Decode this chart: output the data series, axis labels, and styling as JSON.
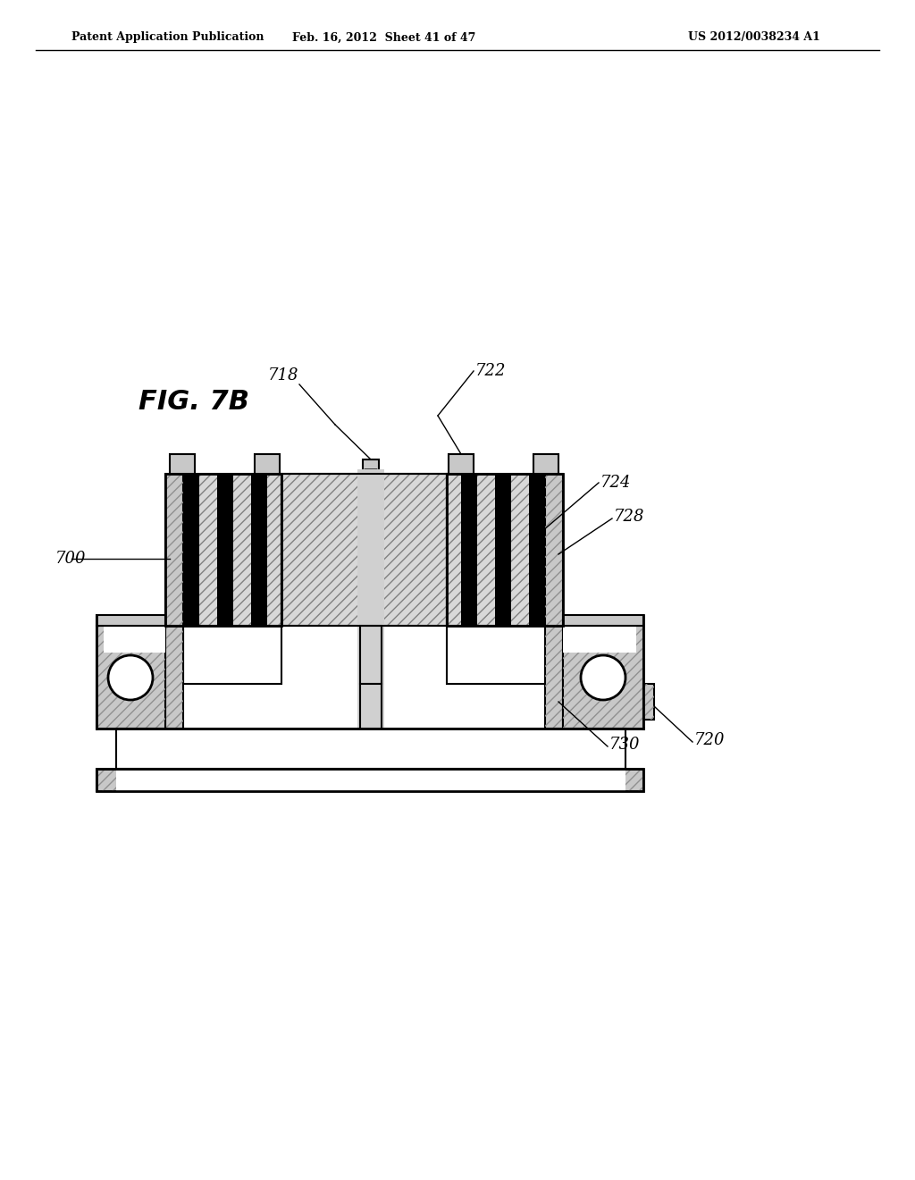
{
  "header_left": "Patent Application Publication",
  "header_center": "Feb. 16, 2012  Sheet 41 of 47",
  "header_right": "US 2012/0038234 A1",
  "fig_label": "FIG. 7B",
  "background_color": "#ffffff",
  "line_color": "#000000",
  "gray_light": "#c8c8c8",
  "gray_mid": "#b0b0b0",
  "gray_dark": "#888888",
  "label_700": "700",
  "label_718": "718",
  "label_720": "720",
  "label_722": "722",
  "label_724": "724",
  "label_728": "728",
  "label_730": "730"
}
